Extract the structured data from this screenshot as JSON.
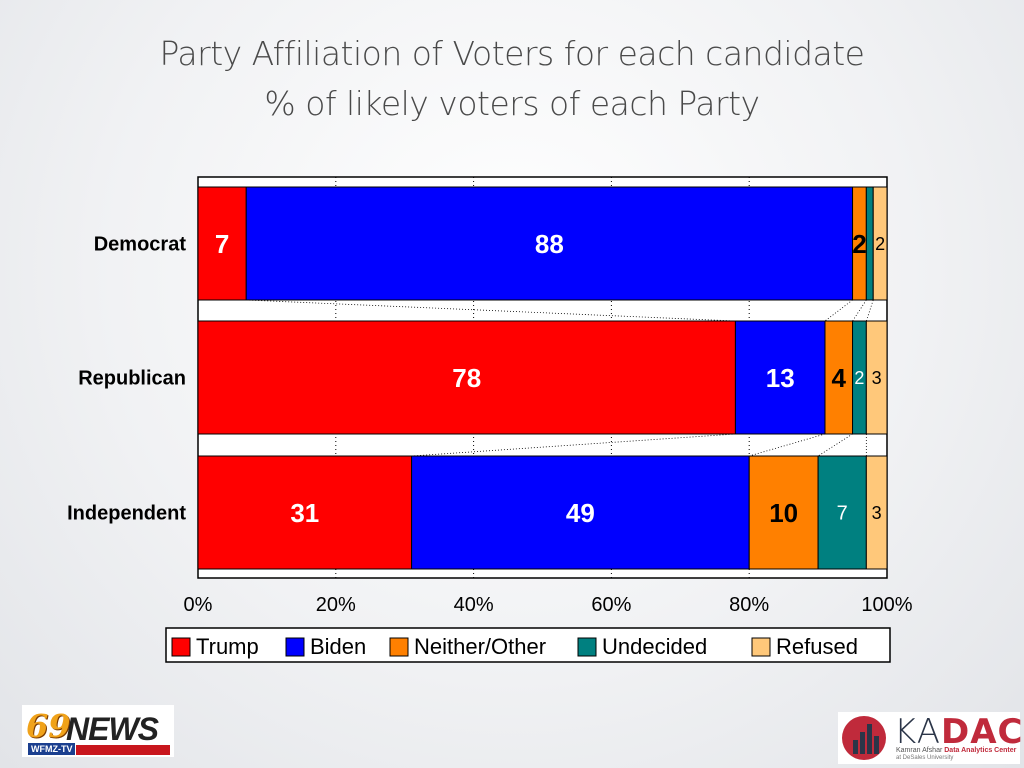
{
  "slide": {
    "title_line1": "Party Affiliation of Voters for each candidate",
    "title_line2": "% of likely voters of each Party"
  },
  "colors": {
    "Trump": "#ff0000",
    "Biden": "#0000ff",
    "Neither/Other": "#ff8000",
    "Undecided": "#008080",
    "Refused": "#ffc87a"
  },
  "chart_data": {
    "type": "bar",
    "orientation": "horizontal",
    "stacked": true,
    "categories": [
      "Democrat",
      "Republican",
      "Independent"
    ],
    "series": [
      {
        "name": "Trump",
        "values": [
          7,
          78,
          31
        ]
      },
      {
        "name": "Biden",
        "values": [
          88,
          13,
          49
        ]
      },
      {
        "name": "Neither/Other",
        "values": [
          2,
          4,
          10
        ]
      },
      {
        "name": "Undecided",
        "values": [
          1,
          2,
          7
        ]
      },
      {
        "name": "Refused",
        "values": [
          2,
          3,
          3
        ]
      }
    ],
    "data_labels": [
      [
        "7",
        "88",
        "2",
        "",
        "2"
      ],
      [
        "78",
        "13",
        "4",
        "2",
        "3"
      ],
      [
        "31",
        "49",
        "10",
        "7",
        "3"
      ]
    ],
    "x_ticks": [
      "0%",
      "20%",
      "40%",
      "60%",
      "80%",
      "100%"
    ],
    "xlim": [
      0,
      100
    ],
    "grid": true,
    "series_lines": true,
    "legend_position": "bottom"
  },
  "logos": {
    "news_number": "69",
    "news_word": "NEWS",
    "news_station": "WFMZ-TV",
    "kadac_ka": "KA",
    "kadac_dac": "DAC",
    "kadac_line1_plain": "Kamran Afshar ",
    "kadac_line1_bold": "Data Analytics Center",
    "kadac_line2": "at DeSales University"
  }
}
